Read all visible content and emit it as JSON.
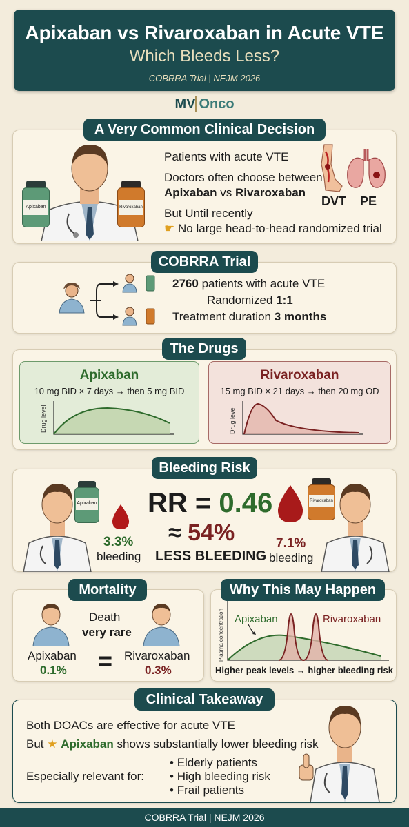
{
  "header": {
    "title": "Apixaban vs Rivaroxaban in Acute VTE",
    "subtitle": "Which Bleeds Less?",
    "source": "COBRRA Trial | NEJM 2026"
  },
  "brand": {
    "mv": "MV",
    "onco": "Onco"
  },
  "section1": {
    "title": "A Very Common Clinical Decision",
    "line1": "Patients with acute VTE",
    "line2": "Doctors often choose between",
    "drug_a": "Apixaban",
    "vs": "vs",
    "drug_b": "Rivaroxaban",
    "line4": "But Until recently",
    "line5": "No large head-to-head randomized trial",
    "bottle_left": "Apixaban",
    "bottle_right": "Rivaroxaban",
    "dvt": "DVT",
    "pe": "PE"
  },
  "section2": {
    "title": "COBRRA Trial",
    "patients_num": "2760",
    "patients_text": "patients with acute VTE",
    "randomized": "Randomized",
    "ratio": "1:1",
    "duration": "Treatment duration",
    "duration_val": "3 months"
  },
  "section3": {
    "title": "The Drugs",
    "apixaban_name": "Apixaban",
    "apixaban_dose": "10 mg BID × 7 days → then 5 mg BID",
    "rivaroxaban_name": "Rivaroxaban",
    "rivaroxaban_dose": "15 mg BID × 21 days → then 20 mg OD",
    "ylabel": "Drug level"
  },
  "section4": {
    "title": "Bleeding Risk",
    "rr_label": "RR =",
    "rr_value": "0.46",
    "approx": "≈",
    "less_pct": "54%",
    "less_text": "LESS BLEEDING",
    "apixaban_pct": "3.3%",
    "apixaban_label": "bleeding",
    "rivaroxaban_pct": "7.1%",
    "rivaroxaban_label": "bleeding",
    "bottle_left": "Apixaban",
    "bottle_right": "Rivaroxaban"
  },
  "section5": {
    "title": "Mortality",
    "death": "Death",
    "very_rare": "very rare",
    "apixaban_name": "Apixaban",
    "apixaban_val": "0.1%",
    "equals": "=",
    "rivaroxaban_name": "Rivaroxaban",
    "rivaroxaban_val": "0.3%"
  },
  "section6": {
    "title": "Why This May Happen",
    "ylabel": "Plasma concentration",
    "label_a": "Apixaban",
    "label_b": "Rivaroxaban",
    "caption": "Higher peak levels → higher bleeding risk"
  },
  "section7": {
    "title": "Clinical Takeaway",
    "line1": "Both DOACs are effective for acute VTE",
    "line2_pre": "But",
    "line2_drug": "Apixaban",
    "line2_post": "shows substantially lower bleeding risk",
    "relevant": "Especially relevant for:",
    "bullets": [
      "Elderly patients",
      "High bleeding risk",
      "Frail patients"
    ]
  },
  "footer": {
    "text": "COBRRA Trial | NEJM 2026"
  },
  "colors": {
    "teal": "#1c4b4e",
    "green": "#2e6b2c",
    "red": "#7a2222",
    "background": "#f3ecdc"
  },
  "icons": [
    "doctor-illustration",
    "pill-bottle-icon",
    "leg-dvt-icon",
    "lungs-pe-icon",
    "patient-icon",
    "blood-drop-icon",
    "pointing-hand-icon",
    "star-icon",
    "thumbs-up-icon"
  ]
}
